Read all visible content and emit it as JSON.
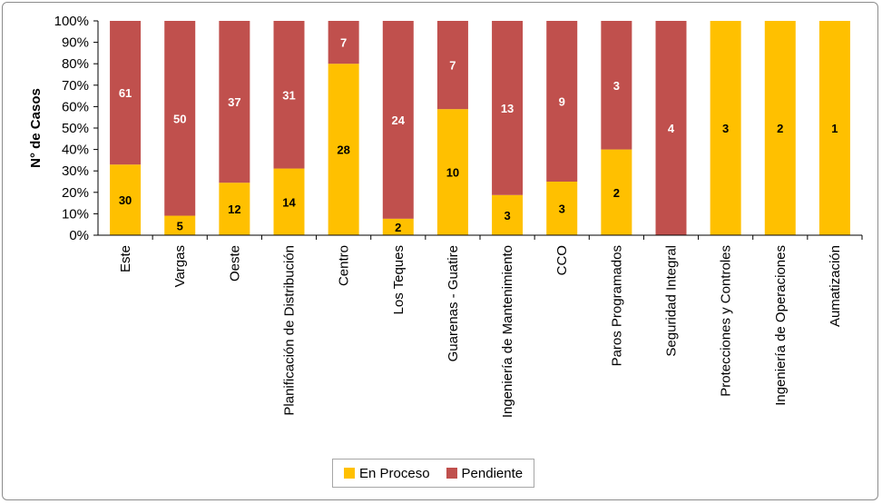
{
  "colors": {
    "en_proceso": "#ffc000",
    "pendiente": "#c0504d",
    "axis": "#000000"
  },
  "chart_data": {
    "type": "bar",
    "stacked": "percent",
    "title": "",
    "xlabel": "",
    "ylabel": "N° de Casos",
    "ylim": [
      0,
      100
    ],
    "yticks": [
      "0%",
      "10%",
      "20%",
      "30%",
      "40%",
      "50%",
      "60%",
      "70%",
      "80%",
      "90%",
      "100%"
    ],
    "grid": false,
    "legend_position": "bottom",
    "categories": [
      "Este",
      "Vargas",
      "Oeste",
      "Planificación de Distribución",
      "Centro",
      "Los Teques",
      "Guarenas - Guatire",
      "Ingeniería de Mantenimiento",
      "CCO",
      "Paros Programados",
      "Seguridad Integral",
      "Protecciones y Controles",
      "Ingeniería de Operaciones",
      "Aumatización"
    ],
    "series": [
      {
        "name": "En Proceso",
        "color": "#ffc000",
        "values": [
          30,
          5,
          12,
          14,
          28,
          2,
          10,
          3,
          3,
          2,
          0,
          3,
          2,
          1
        ]
      },
      {
        "name": "Pendiente",
        "color": "#c0504d",
        "values": [
          61,
          50,
          37,
          31,
          7,
          24,
          7,
          13,
          9,
          3,
          4,
          0,
          0,
          0
        ]
      }
    ]
  }
}
